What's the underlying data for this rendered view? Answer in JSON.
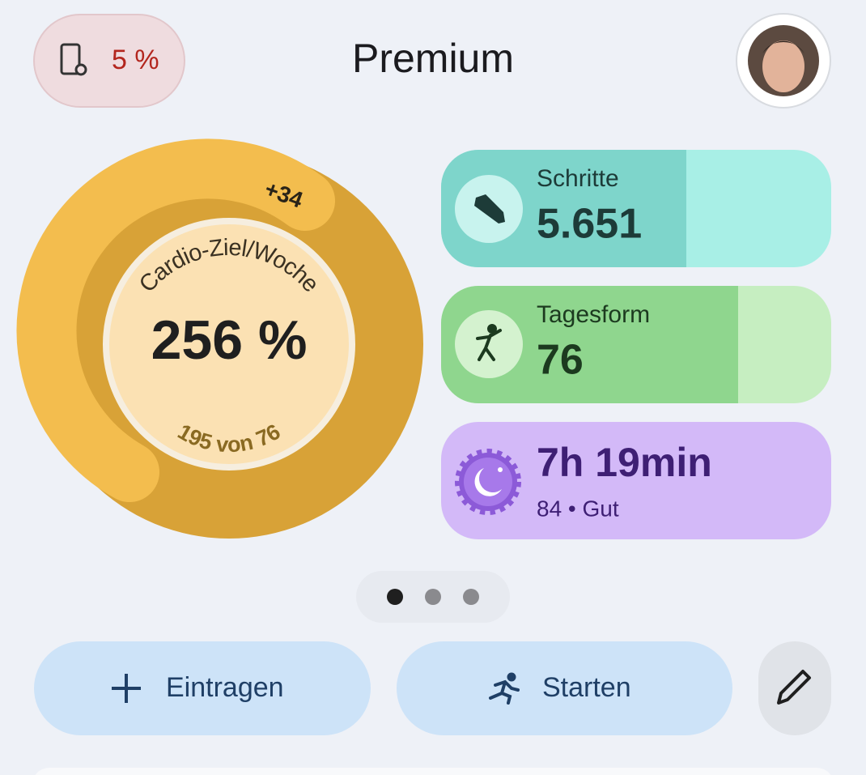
{
  "status_pill": {
    "label": "5 %"
  },
  "header": {
    "title": "Premium"
  },
  "cardio_ring": {
    "badge": "+34",
    "title": "Cardio-Ziel/Woche",
    "value": "256 %",
    "detail": "195 von 76"
  },
  "cards": [
    {
      "label": "Schritte",
      "value": "5.651"
    },
    {
      "label": "Tagesform",
      "value": "76"
    },
    {
      "value": "7h 19min",
      "detail": "84 • Gut"
    }
  ],
  "actions": [
    {
      "label": "Eintragen"
    },
    {
      "label": "Starten"
    }
  ]
}
